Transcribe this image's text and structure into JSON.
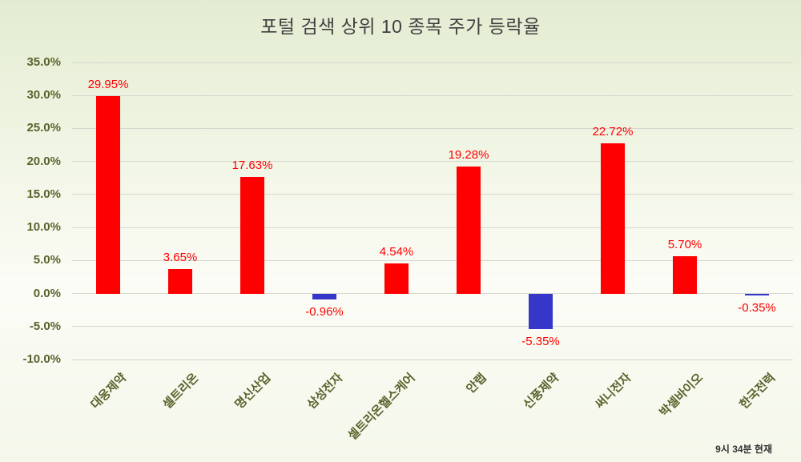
{
  "footer": {
    "timestamp": "9시 34분 현재"
  },
  "colors": {
    "positive_bar": "#ff0000",
    "negative_bar": "#3636c9",
    "data_label": "#ff0000",
    "axis_text": "#5a632c",
    "grid": "#d6d8cf",
    "title": "#404040"
  },
  "chart_data": {
    "type": "bar",
    "title": "포털 검색 상위 10 종목 주가 등락율",
    "categories": [
      "대웅제약",
      "셀트리온",
      "명신산업",
      "삼성전자",
      "셀트리온헬스케어",
      "안랩",
      "신풍제약",
      "써니전자",
      "박셀바이오",
      "한국전력"
    ],
    "values": [
      29.95,
      3.65,
      17.63,
      -0.96,
      4.54,
      19.28,
      -5.35,
      22.72,
      5.7,
      -0.35
    ],
    "data_labels": [
      "29.95%",
      "3.65%",
      "17.63%",
      "-0.96%",
      "4.54%",
      "19.28%",
      "-5.35%",
      "22.72%",
      "5.70%",
      "-0.35%"
    ],
    "xlabel": "",
    "ylabel": "",
    "ylim": [
      -10,
      35
    ],
    "ytick_step": 5,
    "ytick_labels": [
      "35.0%",
      "30.0%",
      "25.0%",
      "20.0%",
      "15.0%",
      "10.0%",
      "5.0%",
      "0.0%",
      "-5.0%",
      "-10.0%"
    ],
    "grid": true,
    "legend": false,
    "annotation": "9시 34분 현재"
  }
}
